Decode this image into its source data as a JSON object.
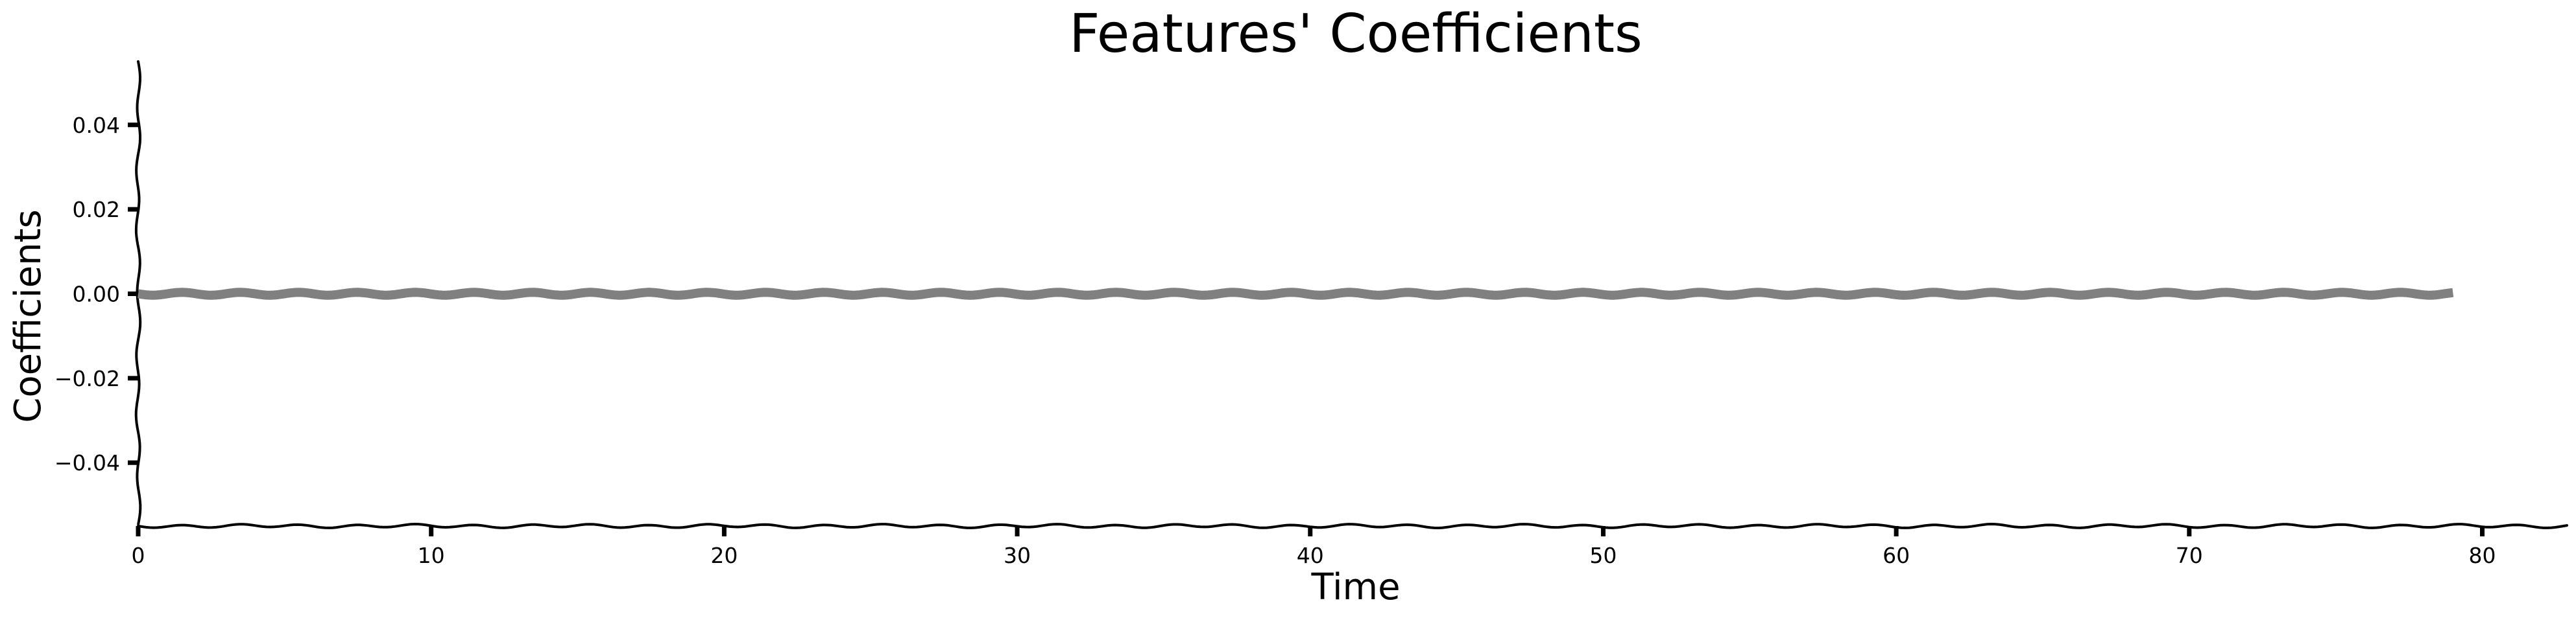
{
  "chart_data": {
    "type": "line",
    "title": "Features' Coefficients",
    "xlabel": "Time",
    "ylabel": "Coefficients",
    "xlim": [
      0,
      83
    ],
    "ylim": [
      -0.055,
      0.055
    ],
    "xticks": [
      0,
      10,
      20,
      30,
      40,
      50,
      60,
      70,
      80
    ],
    "xtick_labels": [
      "0",
      "10",
      "20",
      "30",
      "40",
      "50",
      "60",
      "70",
      "80"
    ],
    "yticks": [
      -0.04,
      -0.02,
      0.0,
      0.02,
      0.04
    ],
    "ytick_labels": [
      "−0.04",
      "−0.02",
      "0.00",
      "0.02",
      "0.04"
    ],
    "grid": false,
    "style": "xkcd",
    "series": [
      {
        "color": "#808080",
        "x": [
          0,
          1,
          2,
          3,
          4,
          5,
          6,
          7,
          8,
          9,
          10,
          11,
          12,
          13,
          14,
          15,
          16,
          17,
          18,
          19,
          20,
          21,
          22,
          23,
          24,
          25,
          26,
          27,
          28,
          29,
          30,
          31,
          32,
          33,
          34,
          35,
          36,
          37,
          38,
          39,
          40,
          41,
          42,
          43,
          44,
          45,
          46,
          47,
          48,
          49,
          50,
          51,
          52,
          53,
          54,
          55,
          56,
          57,
          58,
          59,
          60,
          61,
          62,
          63,
          64,
          65,
          66,
          67,
          68,
          69,
          70,
          71,
          72,
          73,
          74,
          75,
          76,
          77,
          78,
          79
        ],
        "y": [
          0,
          0,
          0,
          0,
          0,
          0,
          0,
          0,
          0,
          0,
          0,
          0,
          0,
          0,
          0,
          0,
          0,
          0,
          0,
          0,
          0,
          0,
          0,
          0,
          0,
          0,
          0,
          0,
          0,
          0,
          0,
          0,
          0,
          0,
          0,
          0,
          0,
          0,
          0,
          0,
          0,
          0,
          0,
          0,
          0,
          0,
          0,
          0,
          0,
          0,
          0,
          0,
          0,
          0,
          0,
          0,
          0,
          0,
          0,
          0,
          0,
          0,
          0,
          0,
          0,
          0,
          0,
          0,
          0,
          0,
          0,
          0,
          0,
          0,
          0,
          0,
          0,
          0,
          0,
          0
        ]
      }
    ]
  }
}
